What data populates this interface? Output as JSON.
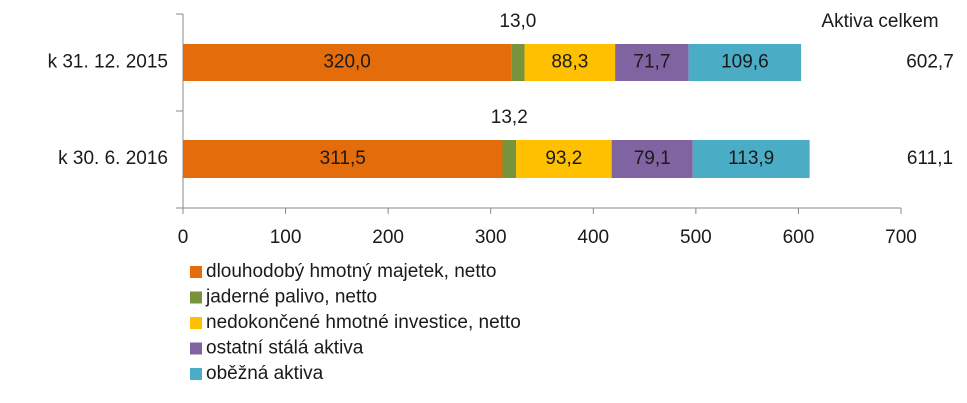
{
  "chart_data": {
    "type": "stacked_barh",
    "categories": [
      "k 31. 12. 2015",
      "k 30. 6. 2016"
    ],
    "series": [
      {
        "name": "dlouhodobý hmotný majetek, netto",
        "color": "#e46c0a",
        "values": [
          320.0,
          311.5
        ],
        "value_labels": [
          "320,0",
          "311,5"
        ]
      },
      {
        "name": "jaderné palivo, netto",
        "color": "#77933c",
        "values": [
          13.0,
          13.2
        ],
        "value_labels": [
          "13,0",
          "13,2"
        ]
      },
      {
        "name": "nedokončené hmotné investice, netto",
        "color": "#ffc000",
        "values": [
          88.3,
          93.2
        ],
        "value_labels": [
          "88,3",
          "93,2"
        ]
      },
      {
        "name": "ostatní stálá aktiva",
        "color": "#8064a2",
        "values": [
          71.7,
          79.1
        ],
        "value_labels": [
          "71,7",
          "79,1"
        ]
      },
      {
        "name": "oběžná aktiva",
        "color": "#4bacc6",
        "values": [
          109.6,
          113.9
        ],
        "value_labels": [
          "109,6",
          "113,9"
        ]
      }
    ],
    "totals_title": "Aktiva celkem",
    "totals": [
      602.7,
      611.1
    ],
    "total_labels": [
      "602,7",
      "611,1"
    ],
    "xlim": [
      0,
      700
    ],
    "xticks": [
      0,
      100,
      200,
      300,
      400,
      500,
      600,
      700
    ],
    "legend": "bottom-left"
  }
}
